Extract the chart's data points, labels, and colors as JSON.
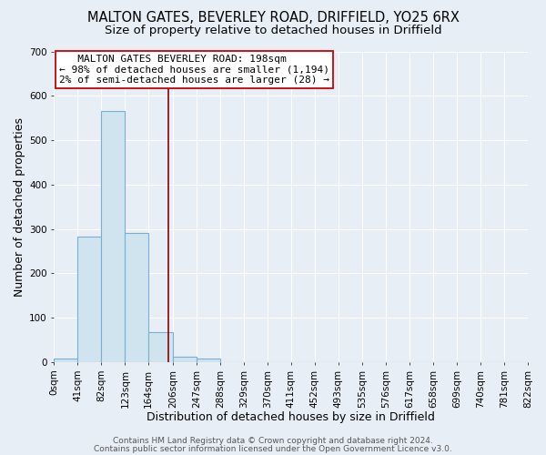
{
  "title1": "MALTON GATES, BEVERLEY ROAD, DRIFFIELD, YO25 6RX",
  "title2": "Size of property relative to detached houses in Driffield",
  "xlabel": "Distribution of detached houses by size in Driffield",
  "ylabel": "Number of detached properties",
  "bin_edges": [
    0,
    41,
    82,
    123,
    164,
    206,
    247,
    288,
    329,
    370,
    411,
    452,
    493,
    535,
    576,
    617,
    658,
    699,
    740,
    781,
    822
  ],
  "bar_heights": [
    8,
    282,
    565,
    292,
    68,
    13,
    9,
    0,
    0,
    0,
    0,
    0,
    0,
    0,
    0,
    0,
    0,
    0,
    0,
    0
  ],
  "bar_color": "#d0e4f0",
  "bar_edge_color": "#7aafd4",
  "bar_linewidth": 0.8,
  "vline_x": 198,
  "vline_color": "#8b0000",
  "vline_linewidth": 1.2,
  "ylim": [
    0,
    700
  ],
  "yticks": [
    0,
    100,
    200,
    300,
    400,
    500,
    600,
    700
  ],
  "xtick_labels": [
    "0sqm",
    "41sqm",
    "82sqm",
    "123sqm",
    "164sqm",
    "206sqm",
    "247sqm",
    "288sqm",
    "329sqm",
    "370sqm",
    "411sqm",
    "452sqm",
    "493sqm",
    "535sqm",
    "576sqm",
    "617sqm",
    "658sqm",
    "699sqm",
    "740sqm",
    "781sqm",
    "822sqm"
  ],
  "annotation_line1": "   MALTON GATES BEVERLEY ROAD: 198sqm",
  "annotation_line2": "← 98% of detached houses are smaller (1,194)",
  "annotation_line3": "2% of semi-detached houses are larger (28) →",
  "annotation_box_color": "white",
  "annotation_box_edge_color": "#cc0000",
  "footer1": "Contains HM Land Registry data © Crown copyright and database right 2024.",
  "footer2": "Contains public sector information licensed under the Open Government Licence v3.0.",
  "bg_color": "#e8eef5",
  "grid_color": "white",
  "title_fontsize": 10.5,
  "subtitle_fontsize": 9.5,
  "axis_label_fontsize": 9,
  "tick_fontsize": 7.5,
  "annotation_fontsize": 8,
  "footer_fontsize": 6.5
}
